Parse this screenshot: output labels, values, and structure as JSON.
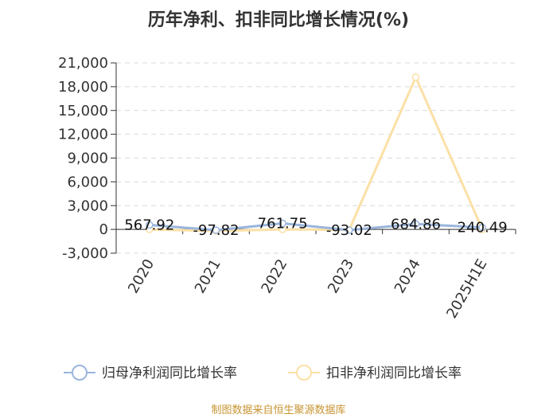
{
  "chart_data": {
    "type": "line",
    "title": "历年净利、扣非同比增长情况(%)",
    "categories": [
      "2020",
      "2021",
      "2022",
      "2023",
      "2024",
      "2025H1E"
    ],
    "series": [
      {
        "name": "归母净利润同比增长率",
        "values": [
          567.92,
          -97.82,
          761.75,
          -93.02,
          684.86,
          240.49
        ],
        "labels": [
          "567.92",
          "-97.82",
          "761.75",
          "-93.02",
          "684.86",
          "240.49"
        ]
      },
      {
        "name": "扣非净利润同比增长率",
        "values": [
          0,
          -200,
          0,
          -60,
          19200,
          0
        ]
      }
    ],
    "yticks": [
      "21,000",
      "18,000",
      "15,000",
      "12,000",
      "9,000",
      "6,000",
      "3,000",
      "0",
      "-3,000"
    ],
    "ylim": [
      -3000,
      21000
    ],
    "grid": true,
    "legend": "bottom",
    "xlabel": "",
    "ylabel": ""
  },
  "colors": {
    "series1": "#9ab5dc",
    "series2": "#fbe0a6"
  },
  "source": "制图数据来自恒生聚源数据库"
}
